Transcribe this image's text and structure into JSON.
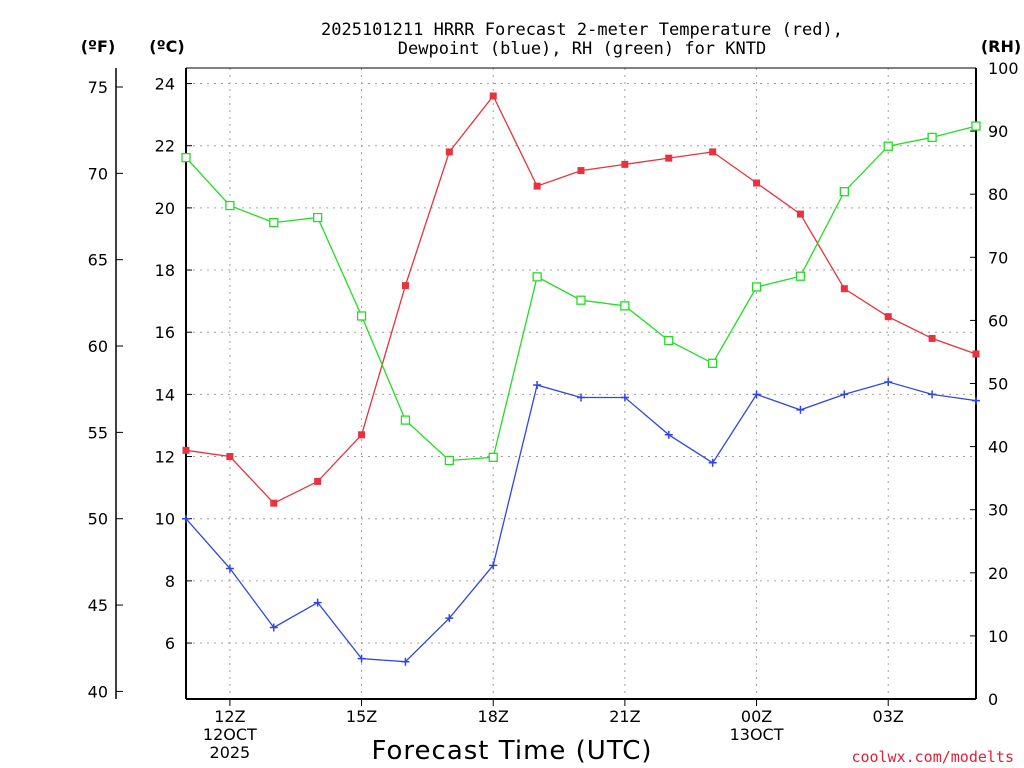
{
  "chart_data": {
    "type": "line",
    "title_line1": "2025101211 HRRR Forecast 2-meter Temperature (red),",
    "title_line2": "Dewpoint (blue), RH (green) for KNTD",
    "xlabel": "Forecast Time (UTC)",
    "credit": "coolwx.com/modelts",
    "units": {
      "left_outer": "(ºF)",
      "left_inner": "(ºC)",
      "right": "(RH)"
    },
    "xlim": [
      11,
      29
    ],
    "x_ticks": [
      {
        "hour": 12,
        "line1": "12Z",
        "line2": "12OCT",
        "line3": "2025"
      },
      {
        "hour": 15,
        "line1": "15Z",
        "line2": "",
        "line3": ""
      },
      {
        "hour": 18,
        "line1": "18Z",
        "line2": "",
        "line3": ""
      },
      {
        "hour": 21,
        "line1": "21Z",
        "line2": "",
        "line3": ""
      },
      {
        "hour": 24,
        "line1": "00Z",
        "line2": "13OCT",
        "line3": ""
      },
      {
        "hour": 27,
        "line1": "03Z",
        "line2": "",
        "line3": ""
      }
    ],
    "y_celsius": {
      "lim": [
        4.2,
        24.5
      ],
      "ticks": [
        6,
        8,
        10,
        12,
        14,
        16,
        18,
        20,
        22,
        24
      ]
    },
    "y_fahrenheit": {
      "ticks": [
        40,
        45,
        50,
        55,
        60,
        65,
        70,
        75
      ]
    },
    "y_rh": {
      "lim": [
        0,
        100
      ],
      "ticks": [
        0,
        10,
        20,
        30,
        40,
        50,
        60,
        70,
        80,
        90,
        100
      ]
    },
    "x": [
      11,
      12,
      13,
      14,
      15,
      16,
      17,
      18,
      19,
      20,
      21,
      22,
      23,
      24,
      25,
      26,
      27,
      28,
      29
    ],
    "series": [
      {
        "name": "Temperature",
        "unit": "C",
        "color": "#e8323c",
        "marker": "filled-square",
        "values": [
          12.2,
          12.0,
          10.5,
          11.2,
          12.7,
          17.5,
          21.8,
          23.6,
          20.7,
          21.2,
          21.4,
          21.6,
          21.8,
          20.8,
          19.8,
          17.4,
          16.5,
          15.8,
          15.3
        ]
      },
      {
        "name": "Dewpoint",
        "unit": "C",
        "color": "#2f47e0",
        "marker": "plus",
        "values": [
          10.0,
          8.4,
          6.5,
          7.3,
          5.5,
          5.4,
          6.8,
          8.5,
          14.3,
          13.9,
          13.9,
          12.7,
          11.8,
          14.0,
          13.5,
          14.0,
          14.4,
          14.0,
          13.8
        ]
      },
      {
        "name": "RH",
        "unit": "%",
        "color": "#22dd22",
        "marker": "open-square",
        "values": [
          85.8,
          78.2,
          75.5,
          76.3,
          60.7,
          44.2,
          37.8,
          38.3,
          66.9,
          63.2,
          62.3,
          56.8,
          53.2,
          65.3,
          67.0,
          80.4,
          87.6,
          89.0,
          90.8
        ]
      }
    ]
  }
}
